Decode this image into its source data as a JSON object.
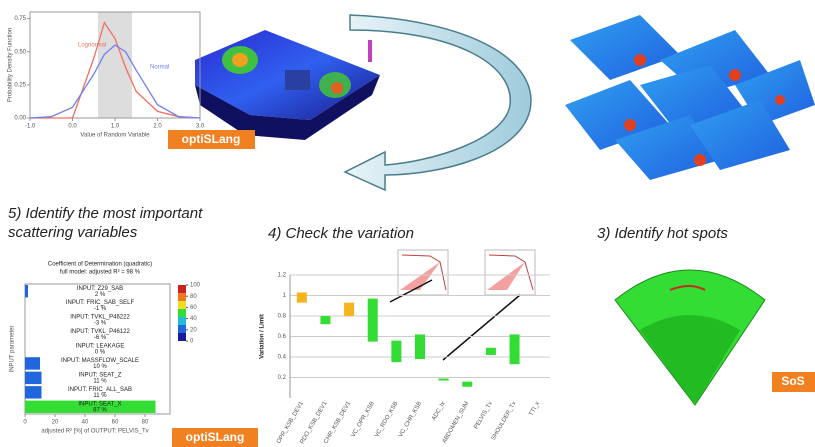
{
  "captions": {
    "step5_line1": "5) Identify the most important",
    "step5_line2": "scattering variables",
    "step4": "4) Check the variation",
    "step3": "3) Identify hot spots"
  },
  "logos": {
    "opti_top": "optiSLang",
    "opti_bottom": "optiSLang",
    "sos": "SoS"
  },
  "chart_data": [
    {
      "type": "line",
      "xlabel": "Value of Random Variable",
      "ylabel": "Probability Density Function",
      "x": [
        -1,
        -0.5,
        0,
        0.5,
        0.75,
        1,
        1.25,
        1.5,
        2,
        2.5,
        3
      ],
      "series": [
        {
          "name": "Lognormal",
          "color": "#f07060",
          "values": [
            0,
            0,
            0,
            0.45,
            0.72,
            0.6,
            0.38,
            0.2,
            0.05,
            0.01,
            0
          ]
        },
        {
          "name": "Normal",
          "color": "#7080f0",
          "values": [
            0,
            0.01,
            0.08,
            0.33,
            0.48,
            0.55,
            0.5,
            0.36,
            0.1,
            0.01,
            0
          ]
        }
      ],
      "xlim": [
        -1,
        3
      ],
      "ylim": [
        0,
        0.8
      ],
      "xticks": [
        {
          "value": -1,
          "label": "-1.0"
        },
        {
          "value": 0,
          "label": "0.0"
        },
        {
          "value": 1,
          "label": "1.0"
        },
        {
          "value": 2,
          "label": "2.0"
        },
        {
          "value": 3,
          "label": "3.0"
        }
      ],
      "yticks": [
        {
          "value": 0,
          "label": "0.00"
        },
        {
          "value": 0.25,
          "label": "0.25"
        },
        {
          "value": 0.5,
          "label": "0.50"
        },
        {
          "value": 0.75,
          "label": "0.75"
        }
      ]
    },
    {
      "type": "hbar",
      "title": "Coefficient of Determination (quadratic)",
      "subtitle": "full model: adjusted R² = 98 %",
      "xlabel": "adjusted R² [%] of OUTPUT: PELVIS_Tv",
      "ylabel": "INPUT parameter",
      "categories": [
        "INPUT: Z29_SAB",
        "INPUT: FRIC_SAB_SELF",
        "INPUT: TVKL_P46222",
        "INPUT: TVKL_P46122",
        "INPUT: LEAKAGE",
        "INPUT: MASSFLOW_SCALE",
        "INPUT: SEAT_Z",
        "INPUT: FRIC_ALL_SAB",
        "INPUT: SEAT_X"
      ],
      "values": [
        2,
        -1,
        -3,
        -6,
        0,
        10,
        11,
        11,
        87
      ],
      "value_labels": [
        "2 %",
        "-1 %",
        "-3 %",
        "-6 %",
        "0 %",
        "10 %",
        "11 %",
        "11 %",
        "87 %"
      ],
      "colors": [
        "#2266dd",
        "#2266dd",
        "#2266dd",
        "#2266dd",
        "#2266dd",
        "#2266dd",
        "#2266dd",
        "#2266dd",
        "#33dd33"
      ],
      "xlim": [
        0,
        100
      ],
      "xticks": [
        0,
        20,
        40,
        60,
        80
      ],
      "colorbar_ticks": [
        0,
        20,
        40,
        60,
        80,
        100
      ]
    },
    {
      "type": "range",
      "ylabel": "Variation / Limit",
      "categories": [
        "OPR_KSB_DEV1",
        "RDO_KSB_DEV1",
        "CHR_KSB_DEV1",
        "VC_OPR_KSB",
        "VC_RDO_KSB",
        "VC_CHR_KSB",
        "ADC_Ix",
        "ABDOMEN_SUM",
        "PELVIS_Tv",
        "SHOULDER_Tv",
        "TTI_x"
      ],
      "lows": [
        0.93,
        0.72,
        0.8,
        0.55,
        0.35,
        0.38,
        0.17,
        0.11,
        0.42,
        0.33,
        null
      ],
      "highs": [
        1.03,
        0.8,
        0.93,
        0.97,
        0.56,
        0.62,
        0.19,
        0.16,
        0.49,
        0.62,
        null
      ],
      "colors": [
        "#f5b41e",
        "#33dd33",
        "#f5b41e",
        "#33dd33",
        "#33dd33",
        "#33dd33",
        "#33dd33",
        "#33dd33",
        "#33dd33",
        "#33dd33",
        null
      ],
      "ylim": [
        0,
        1.2
      ],
      "yticks": [
        0.2,
        0.4,
        0.6,
        0.8,
        1,
        1.2
      ],
      "grid": true
    }
  ]
}
